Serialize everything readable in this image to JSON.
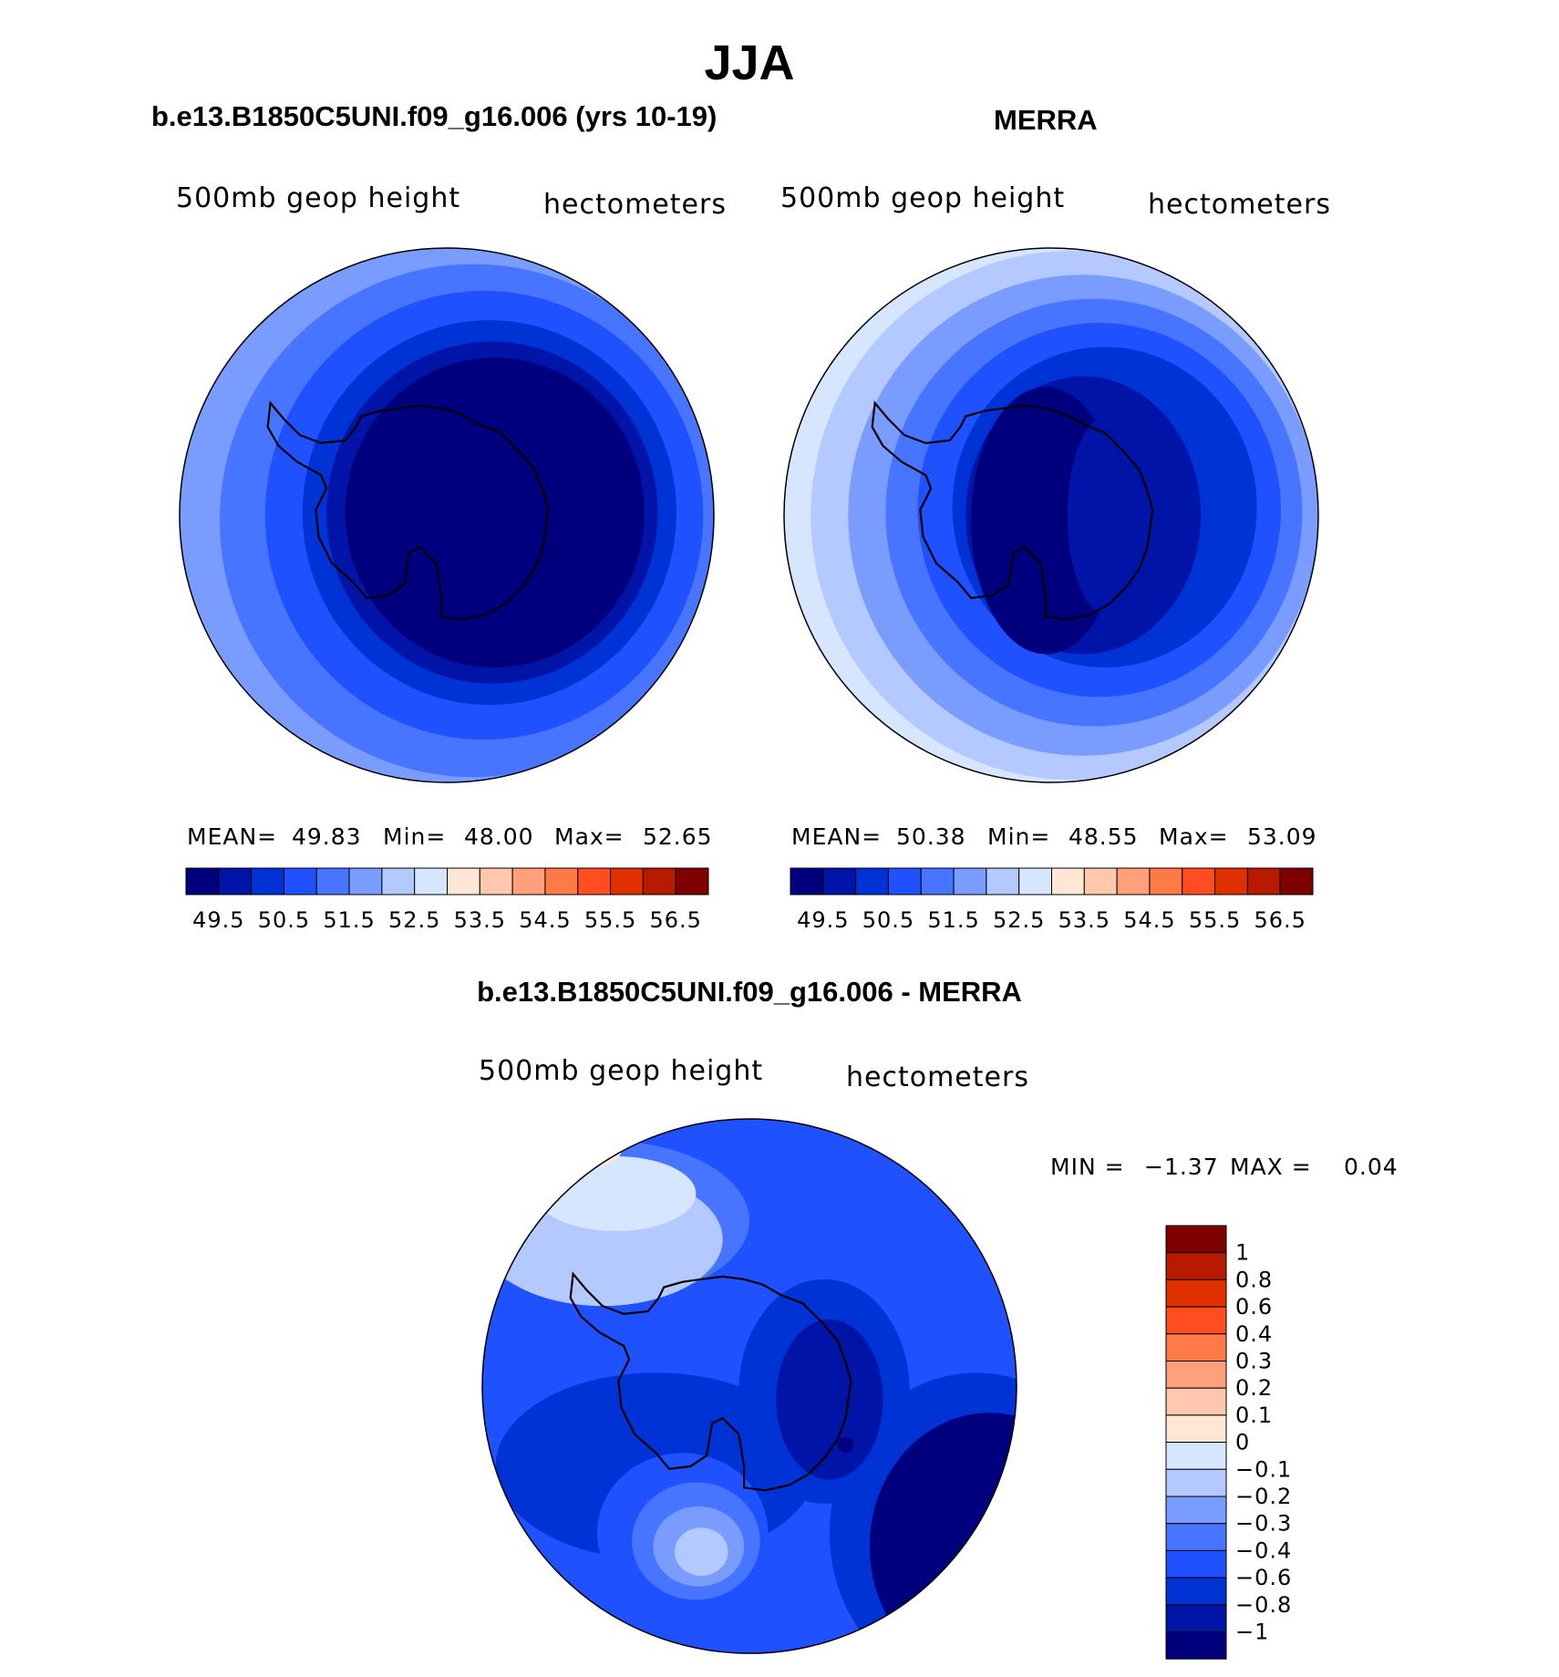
{
  "figure": {
    "title": "JJA"
  },
  "colors": {
    "full_field": [
      "#00007f",
      "#0014a8",
      "#0033d6",
      "#1f51ff",
      "#4775ff",
      "#7a9cff",
      "#b3c9ff",
      "#d6e6ff",
      "#ffe7d6",
      "#ffc7ad",
      "#ffa07a",
      "#ff7a47",
      "#ff4d1f",
      "#e03000",
      "#b81a00",
      "#7f0000"
    ],
    "difference": [
      "#00007f",
      "#0014a8",
      "#0033d6",
      "#1f51ff",
      "#4775ff",
      "#7a9cff",
      "#b3c9ff",
      "#d6e6ff",
      "#ffe7d6",
      "#ffc7ad",
      "#ffa07a",
      "#ff7a47",
      "#ff4d1f",
      "#e03000",
      "#b81a00",
      "#7f0000"
    ]
  },
  "chart_data": [
    {
      "type": "heatmap",
      "projection": "south-polar-stereographic",
      "title": "b.e13.B1850C5UNI.f09_g16.006 (yrs 10-19)",
      "left_label": "500mb  geop  height",
      "right_label": "hectometers",
      "stats": {
        "mean_label": "MEAN=",
        "mean": "49.83",
        "min_label": "Min=",
        "min": "48.00",
        "max_label": "Max=",
        "max": "52.65"
      },
      "colorbar_ticks": [
        "49.5",
        "50.5",
        "51.5",
        "52.5",
        "53.5",
        "54.5",
        "55.5",
        "56.5"
      ],
      "contour_levels": [
        49.5,
        50,
        50.5,
        51,
        51.5,
        52,
        52.5,
        53,
        53.5,
        54,
        54.5,
        55,
        55.5,
        56,
        56.5
      ]
    },
    {
      "type": "heatmap",
      "projection": "south-polar-stereographic",
      "title": "MERRA",
      "left_label": "500mb  geop  height",
      "right_label": "hectometers",
      "stats": {
        "mean_label": "MEAN=",
        "mean": "50.38",
        "min_label": "Min=",
        "min": "48.55",
        "max_label": "Max=",
        "max": "53.09"
      },
      "colorbar_ticks": [
        "49.5",
        "50.5",
        "51.5",
        "52.5",
        "53.5",
        "54.5",
        "55.5",
        "56.5"
      ],
      "contour_levels": [
        49.5,
        50,
        50.5,
        51,
        51.5,
        52,
        52.5,
        53,
        53.5,
        54,
        54.5,
        55,
        55.5,
        56,
        56.5
      ]
    },
    {
      "type": "heatmap",
      "projection": "south-polar-stereographic",
      "title": "b.e13.B1850C5UNI.f09_g16.006 - MERRA",
      "left_label": "500mb  geop  height",
      "right_label": "hectometers",
      "stats": {
        "min_label": "MIN =",
        "min": "−1.37",
        "max_label": "MAX =",
        "max": "0.04"
      },
      "colorbar_ticks": [
        "1",
        "0.8",
        "0.6",
        "0.4",
        "0.3",
        "0.2",
        "0.1",
        "0",
        "−0.1",
        "−0.2",
        "−0.3",
        "−0.4",
        "−0.6",
        "−0.8",
        "−1"
      ],
      "contour_levels": [
        -1,
        -0.8,
        -0.6,
        -0.4,
        -0.3,
        -0.2,
        -0.1,
        0,
        0.1,
        0.2,
        0.3,
        0.4,
        0.6,
        0.8,
        1
      ]
    }
  ]
}
